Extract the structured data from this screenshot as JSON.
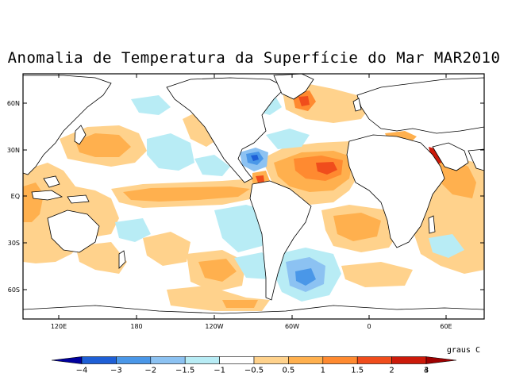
{
  "title": "Anomalia de Temperatura da Superfície do Mar MAR2010",
  "map": {
    "lat_ticks": [
      "60N",
      "30N",
      "EQ",
      "30S",
      "60S"
    ],
    "lon_ticks": [
      "120E",
      "180",
      "120W",
      "60W",
      "0",
      "60E"
    ]
  },
  "colorbar": {
    "unit": "graus C",
    "labels": [
      "−4",
      "−3",
      "−2",
      "−1.5",
      "−1",
      "−0.5",
      "0.5",
      "1",
      "1.5",
      "2",
      "3",
      "4"
    ],
    "colors": [
      "#00009e",
      "#1e5fd6",
      "#4a97e8",
      "#8cc2f2",
      "#b8ecf5",
      "#ffffff",
      "#ffd28c",
      "#ffb04e",
      "#ff8a30",
      "#f04d1c",
      "#cc1a0a",
      "#9e0000"
    ]
  },
  "regions": {
    "warm": [
      "tropical-atlantic",
      "central-pacific-equator",
      "indian-ocean",
      "north-pacific-west",
      "south-pacific",
      "north-atlantic-iceland"
    ],
    "cold": [
      "gulf-of-mexico",
      "south-atlantic-argentina",
      "eastern-pacific-south",
      "north-pacific-alaska"
    ]
  }
}
